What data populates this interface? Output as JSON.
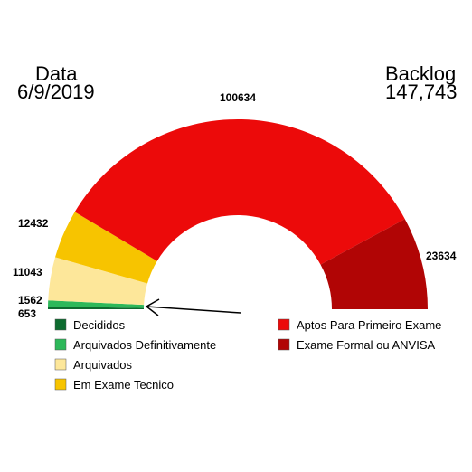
{
  "header": {
    "left_title": "Data",
    "left_value": "6/9/2019",
    "right_title": "Backlog",
    "right_value": "147,743"
  },
  "chart_data": {
    "type": "pie",
    "variant": "half-donut",
    "categories": [
      "Decididos",
      "Arquivados Definitivamente",
      "Arquivados",
      "Em Exame Tecnico",
      "Aptos Para Primeiro Exame",
      "Exame Formal ou ANVISA"
    ],
    "values": [
      653,
      1562,
      11043,
      12432,
      100634,
      23634
    ],
    "labels": [
      "653",
      "1562",
      "11043",
      "12432",
      "100634",
      "23634"
    ],
    "colors": [
      "#0d6b2f",
      "#2db85a",
      "#fde79a",
      "#f7c400",
      "#ec0a0a",
      "#b10505"
    ],
    "legend": [
      {
        "label": "Decididos",
        "color": "#0d6b2f"
      },
      {
        "label": "Arquivados Definitivamente",
        "color": "#2db85a"
      },
      {
        "label": "Arquivados",
        "color": "#fde79a"
      },
      {
        "label": "Em Exame Tecnico",
        "color": "#f7c400"
      },
      {
        "label": "Aptos Para Primeiro Exame",
        "color": "#ec0a0a"
      },
      {
        "label": "Exame Formal ou ANVISA",
        "color": "#b10505"
      }
    ],
    "legend_placement": "bottom",
    "annotation": "arrow pointing to left base of arc"
  }
}
